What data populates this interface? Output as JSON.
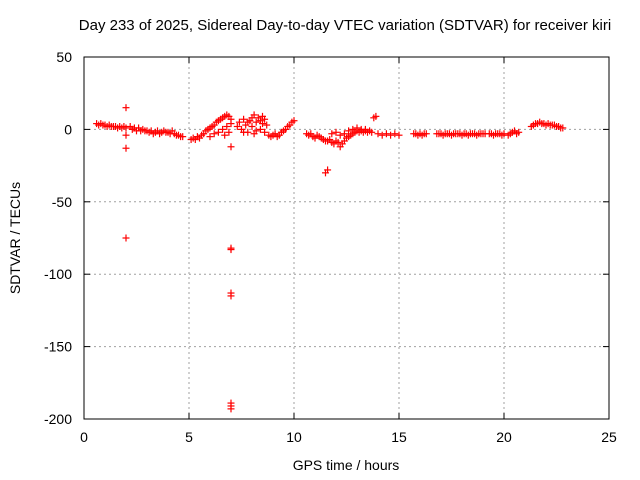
{
  "chart_data": {
    "type": "scatter",
    "title": "Day 233 of 2025, Sidereal Day-to-day VTEC variation (SDTVAR) for receiver kiri",
    "xlabel": "GPS time / hours",
    "ylabel": "SDTVAR / TECUs",
    "xlim": [
      0,
      25
    ],
    "ylim": [
      -200,
      50
    ],
    "x_ticks": [
      0,
      5,
      10,
      15,
      20,
      25
    ],
    "y_ticks": [
      50,
      0,
      -50,
      -100,
      -150,
      -200
    ],
    "x_tick_labels": [
      "0",
      "5",
      "10",
      "15",
      "20",
      "25"
    ],
    "y_tick_labels": [
      "50",
      "0",
      "-50",
      "-100",
      "-150",
      "-200"
    ],
    "grid": true,
    "marker": "+",
    "color": "#ff0000",
    "series": [
      {
        "name": "SDTVAR",
        "points": [
          [
            0.6,
            4
          ],
          [
            0.7,
            3
          ],
          [
            0.8,
            4
          ],
          [
            0.9,
            3
          ],
          [
            1.0,
            3
          ],
          [
            1.1,
            2
          ],
          [
            1.2,
            3
          ],
          [
            1.3,
            2
          ],
          [
            1.4,
            2
          ],
          [
            1.5,
            2
          ],
          [
            1.6,
            1
          ],
          [
            1.7,
            2
          ],
          [
            1.8,
            1
          ],
          [
            1.9,
            2
          ],
          [
            2.0,
            1
          ],
          [
            2.0,
            15
          ],
          [
            2.0,
            -4
          ],
          [
            2.0,
            -13
          ],
          [
            2.0,
            -75
          ],
          [
            2.2,
            2
          ],
          [
            2.3,
            0
          ],
          [
            2.4,
            1
          ],
          [
            2.5,
            -1
          ],
          [
            2.6,
            1
          ],
          [
            2.7,
            -1
          ],
          [
            2.8,
            0
          ],
          [
            2.9,
            -1
          ],
          [
            3.0,
            -1
          ],
          [
            3.1,
            -2
          ],
          [
            3.2,
            -1
          ],
          [
            3.3,
            -3
          ],
          [
            3.4,
            -2
          ],
          [
            3.5,
            -1
          ],
          [
            3.6,
            -3
          ],
          [
            3.7,
            -2
          ],
          [
            3.8,
            -1
          ],
          [
            3.9,
            -2
          ],
          [
            4.0,
            -2
          ],
          [
            4.1,
            -3
          ],
          [
            4.2,
            -1
          ],
          [
            4.3,
            -3
          ],
          [
            4.4,
            -4
          ],
          [
            4.5,
            -4
          ],
          [
            4.6,
            -5
          ],
          [
            4.7,
            -5
          ],
          [
            5.1,
            -7
          ],
          [
            5.2,
            -6
          ],
          [
            5.3,
            -7
          ],
          [
            5.4,
            -5
          ],
          [
            5.5,
            -6
          ],
          [
            5.6,
            -4
          ],
          [
            5.7,
            -3
          ],
          [
            5.8,
            -1
          ],
          [
            5.9,
            0
          ],
          [
            6.0,
            1
          ],
          [
            6.1,
            2
          ],
          [
            6.2,
            3
          ],
          [
            6.3,
            5
          ],
          [
            6.4,
            6
          ],
          [
            6.5,
            7
          ],
          [
            6.6,
            8
          ],
          [
            6.7,
            9
          ],
          [
            6.8,
            10
          ],
          [
            6.9,
            9
          ],
          [
            7.0,
            7
          ],
          [
            6.0,
            -5
          ],
          [
            6.2,
            -3
          ],
          [
            6.4,
            -2
          ],
          [
            6.6,
            0
          ],
          [
            6.8,
            2
          ],
          [
            7.0,
            4
          ],
          [
            6.9,
            -2
          ],
          [
            6.7,
            -4
          ],
          [
            7.0,
            -12
          ],
          [
            7.0,
            -82
          ],
          [
            7.0,
            -83
          ],
          [
            7.0,
            -113
          ],
          [
            7.0,
            -115
          ],
          [
            7.0,
            -189
          ],
          [
            7.0,
            -191
          ],
          [
            7.0,
            -193
          ],
          [
            7.3,
            2
          ],
          [
            7.4,
            5
          ],
          [
            7.5,
            0
          ],
          [
            7.6,
            7
          ],
          [
            7.7,
            3
          ],
          [
            7.8,
            -2
          ],
          [
            7.9,
            6
          ],
          [
            8.0,
            2
          ],
          [
            8.1,
            -3
          ],
          [
            8.2,
            5
          ],
          [
            8.3,
            8
          ],
          [
            8.4,
            0
          ],
          [
            8.5,
            4
          ],
          [
            8.6,
            -2
          ],
          [
            8.7,
            3
          ],
          [
            8.8,
            -4
          ],
          [
            8.9,
            -5
          ],
          [
            9.0,
            -4
          ],
          [
            9.1,
            -3
          ],
          [
            9.2,
            -5
          ],
          [
            9.3,
            -4
          ],
          [
            9.4,
            -2
          ],
          [
            9.5,
            -1
          ],
          [
            9.6,
            0
          ],
          [
            9.7,
            2
          ],
          [
            9.8,
            3
          ],
          [
            9.9,
            5
          ],
          [
            10.0,
            6
          ],
          [
            7.6,
            -2
          ],
          [
            7.8,
            5
          ],
          [
            8.0,
            8
          ],
          [
            8.2,
            -1
          ],
          [
            8.4,
            6
          ],
          [
            8.6,
            7
          ],
          [
            8.1,
            10
          ],
          [
            8.5,
            9
          ],
          [
            10.6,
            -3
          ],
          [
            10.7,
            -4
          ],
          [
            10.8,
            -3
          ],
          [
            10.9,
            -5
          ],
          [
            11.0,
            -6
          ],
          [
            11.1,
            -4
          ],
          [
            11.2,
            -5
          ],
          [
            11.3,
            -6
          ],
          [
            11.4,
            -7
          ],
          [
            11.5,
            -8
          ],
          [
            11.6,
            -8
          ],
          [
            11.7,
            -7
          ],
          [
            11.8,
            -9
          ],
          [
            11.9,
            -10
          ],
          [
            12.0,
            -8
          ],
          [
            12.1,
            -9
          ],
          [
            12.2,
            -12
          ],
          [
            12.3,
            -10
          ],
          [
            12.4,
            -8
          ],
          [
            12.5,
            -6
          ],
          [
            12.6,
            -5
          ],
          [
            12.7,
            -4
          ],
          [
            12.8,
            -3
          ],
          [
            12.9,
            -2
          ],
          [
            13.0,
            -1
          ],
          [
            13.1,
            -2
          ],
          [
            13.2,
            -1
          ],
          [
            13.3,
            -2
          ],
          [
            13.4,
            -1
          ],
          [
            13.5,
            -2
          ],
          [
            13.6,
            -1
          ],
          [
            13.7,
            -2
          ],
          [
            11.5,
            -30
          ],
          [
            11.6,
            -28
          ],
          [
            11.8,
            -3
          ],
          [
            12.0,
            -2
          ],
          [
            12.2,
            -4
          ],
          [
            12.4,
            -3
          ],
          [
            12.6,
            -1
          ],
          [
            12.8,
            0
          ],
          [
            13.0,
            1
          ],
          [
            13.2,
            0
          ],
          [
            13.4,
            0
          ],
          [
            13.8,
            8
          ],
          [
            13.9,
            9
          ],
          [
            14.0,
            -3
          ],
          [
            14.2,
            -4
          ],
          [
            14.4,
            -3
          ],
          [
            14.6,
            -4
          ],
          [
            14.8,
            -3
          ],
          [
            15.0,
            -4
          ],
          [
            15.7,
            -3
          ],
          [
            15.8,
            -3
          ],
          [
            15.9,
            -4
          ],
          [
            16.0,
            -3
          ],
          [
            16.1,
            -4
          ],
          [
            16.2,
            -3
          ],
          [
            16.3,
            -3
          ],
          [
            16.8,
            -3
          ],
          [
            16.9,
            -3
          ],
          [
            17.0,
            -3
          ],
          [
            17.1,
            -4
          ],
          [
            17.2,
            -3
          ],
          [
            17.3,
            -3
          ],
          [
            17.4,
            -3
          ],
          [
            17.5,
            -4
          ],
          [
            17.6,
            -3
          ],
          [
            17.7,
            -3
          ],
          [
            17.8,
            -3
          ],
          [
            17.9,
            -3
          ],
          [
            18.0,
            -4
          ],
          [
            18.1,
            -3
          ],
          [
            18.2,
            -3
          ],
          [
            18.3,
            -4
          ],
          [
            18.4,
            -3
          ],
          [
            18.5,
            -3
          ],
          [
            18.6,
            -3
          ],
          [
            18.7,
            -4
          ],
          [
            18.8,
            -3
          ],
          [
            18.9,
            -3
          ],
          [
            19.0,
            -3
          ],
          [
            19.1,
            -3
          ],
          [
            19.3,
            -3
          ],
          [
            19.4,
            -3
          ],
          [
            19.5,
            -4
          ],
          [
            19.6,
            -3
          ],
          [
            19.7,
            -3
          ],
          [
            19.8,
            -3
          ],
          [
            19.9,
            -4
          ],
          [
            20.0,
            -3
          ],
          [
            20.2,
            -4
          ],
          [
            20.3,
            -3
          ],
          [
            20.4,
            -2
          ],
          [
            20.5,
            -1
          ],
          [
            20.6,
            -3
          ],
          [
            20.7,
            -2
          ],
          [
            21.3,
            2
          ],
          [
            21.4,
            3
          ],
          [
            21.5,
            4
          ],
          [
            21.6,
            4
          ],
          [
            21.7,
            5
          ],
          [
            21.8,
            4
          ],
          [
            21.9,
            4
          ],
          [
            22.0,
            3
          ],
          [
            22.1,
            4
          ],
          [
            22.2,
            3
          ],
          [
            22.3,
            3
          ],
          [
            22.4,
            3
          ],
          [
            22.5,
            2
          ],
          [
            22.6,
            2
          ],
          [
            22.7,
            1
          ],
          [
            22.8,
            1
          ]
        ]
      }
    ]
  }
}
